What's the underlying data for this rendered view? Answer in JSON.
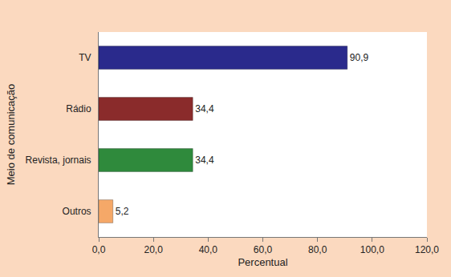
{
  "chart_data": {
    "type": "bar",
    "orientation": "horizontal",
    "categories": [
      "TV",
      "Rádio",
      "Revista, jornais",
      "Outros"
    ],
    "values": [
      90.9,
      34.4,
      34.4,
      5.2
    ],
    "value_labels": [
      "90,9",
      "34,4",
      "34,4",
      "5,2"
    ],
    "data_labels": true,
    "colors": [
      "#2a2a8c",
      "#8a2b2b",
      "#2f8a3c",
      "#f5a868"
    ],
    "x_label": "Percentual",
    "y_label": "Meio de comunicação",
    "xlim": [
      0,
      120
    ],
    "xticks": [
      {
        "value": 0,
        "label": "0,0"
      },
      {
        "value": 20,
        "label": "20,0"
      },
      {
        "value": 40,
        "label": "40,0"
      },
      {
        "value": 60,
        "label": "60,0"
      },
      {
        "value": 80,
        "label": "80,0"
      },
      {
        "value": 100,
        "label": "100,0"
      },
      {
        "value": 120,
        "label": "120,0"
      }
    ],
    "grid": false
  }
}
